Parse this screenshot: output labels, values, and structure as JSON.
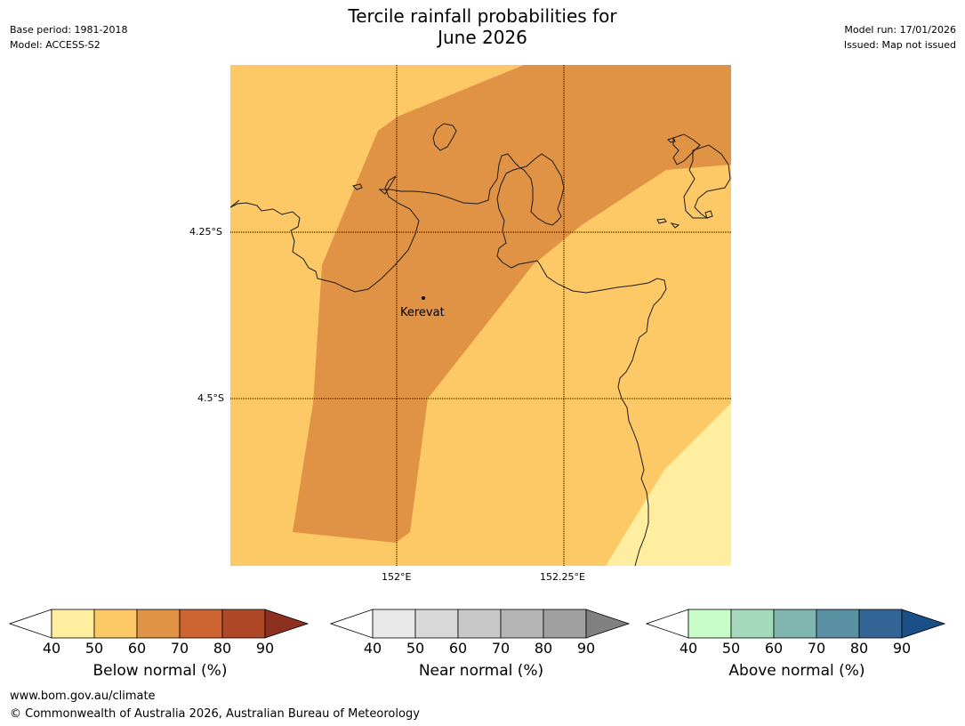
{
  "header": {
    "title_line1": "Tercile rainfall probabilities for",
    "title_line2": "June 2026",
    "left_line1": "Base period: 1981-2018",
    "left_line2": "Model: ACCESS-S2",
    "right_line1": "Model run: 17/01/2026",
    "right_line2": "Issued: Map not issued"
  },
  "map": {
    "lat_labels": [
      "4.25°S",
      "4.5°S"
    ],
    "lon_labels": [
      "152°E",
      "152.25°E"
    ],
    "place_label": "Kerevat",
    "colors": {
      "below_40_50": "#ffeda0",
      "below_50_60": "#fdc966",
      "below_60_70": "#e09344",
      "coast": "#1a1a1a"
    }
  },
  "colorbars": [
    {
      "label": "Below normal (%)",
      "ticks": [
        "40",
        "50",
        "60",
        "70",
        "80",
        "90"
      ],
      "colors": [
        "#ffffff",
        "#ffeda0",
        "#fdc966",
        "#e09344",
        "#cd6532",
        "#ae4826",
        "#8e3020"
      ]
    },
    {
      "label": "Near normal (%)",
      "ticks": [
        "40",
        "50",
        "60",
        "70",
        "80",
        "90"
      ],
      "colors": [
        "#ffffff",
        "#e8e8e8",
        "#d9d9d9",
        "#c8c8c8",
        "#b4b4b4",
        "#a0a0a0",
        "#808080"
      ]
    },
    {
      "label": "Above normal (%)",
      "ticks": [
        "40",
        "50",
        "60",
        "70",
        "80",
        "90"
      ],
      "colors": [
        "#ffffff",
        "#c8fcc8",
        "#a4d9bb",
        "#7fb5ae",
        "#5990a2",
        "#336696",
        "#1a4f87"
      ]
    }
  ],
  "footer": {
    "url": "www.bom.gov.au/climate",
    "copyright": "© Commonwealth of Australia 2026, Australian Bureau of Meteorology"
  }
}
